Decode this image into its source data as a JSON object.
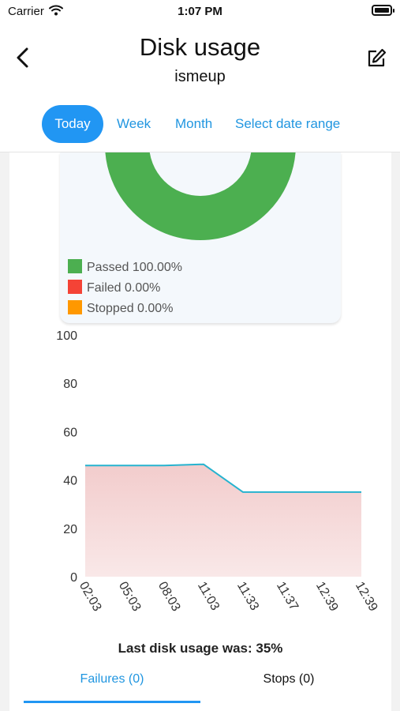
{
  "status_bar": {
    "carrier": "Carrier",
    "time": "1:07 PM"
  },
  "header": {
    "title": "Disk usage",
    "subtitle": "ismeup"
  },
  "tabs": [
    {
      "label": "Today",
      "active": true
    },
    {
      "label": "Week",
      "active": false
    },
    {
      "label": "Month",
      "active": false
    },
    {
      "label": "Select date range",
      "active": false
    }
  ],
  "legend": [
    {
      "label": "Passed 100.00%",
      "color": "#4caf50"
    },
    {
      "label": "Failed 0.00%",
      "color": "#f44336"
    },
    {
      "label": "Stopped 0.00%",
      "color": "#ff9800"
    }
  ],
  "chart_data": [
    {
      "type": "pie",
      "style": "donut",
      "categories": [
        "Passed",
        "Failed",
        "Stopped"
      ],
      "values": [
        100.0,
        0.0,
        0.0
      ],
      "colors": [
        "#4caf50",
        "#f44336",
        "#ff9800"
      ]
    },
    {
      "type": "area",
      "categories": [
        "02:03",
        "05:03",
        "08:03",
        "11:03",
        "11:33",
        "11:37",
        "12:39",
        "12:39"
      ],
      "values": [
        46,
        46,
        46,
        46.5,
        35,
        35,
        35,
        35
      ],
      "ylim": [
        0,
        100
      ],
      "yticks": [
        0,
        20,
        40,
        60,
        80,
        100
      ],
      "line_color": "#26b3cf",
      "fill_color": "#f2cccc",
      "grid": false
    }
  ],
  "summary": {
    "text": "Last disk usage was: 35%"
  },
  "bottom_tabs": [
    {
      "label": "Failures (0)",
      "active": true
    },
    {
      "label": "Stops (0)",
      "active": false
    }
  ]
}
